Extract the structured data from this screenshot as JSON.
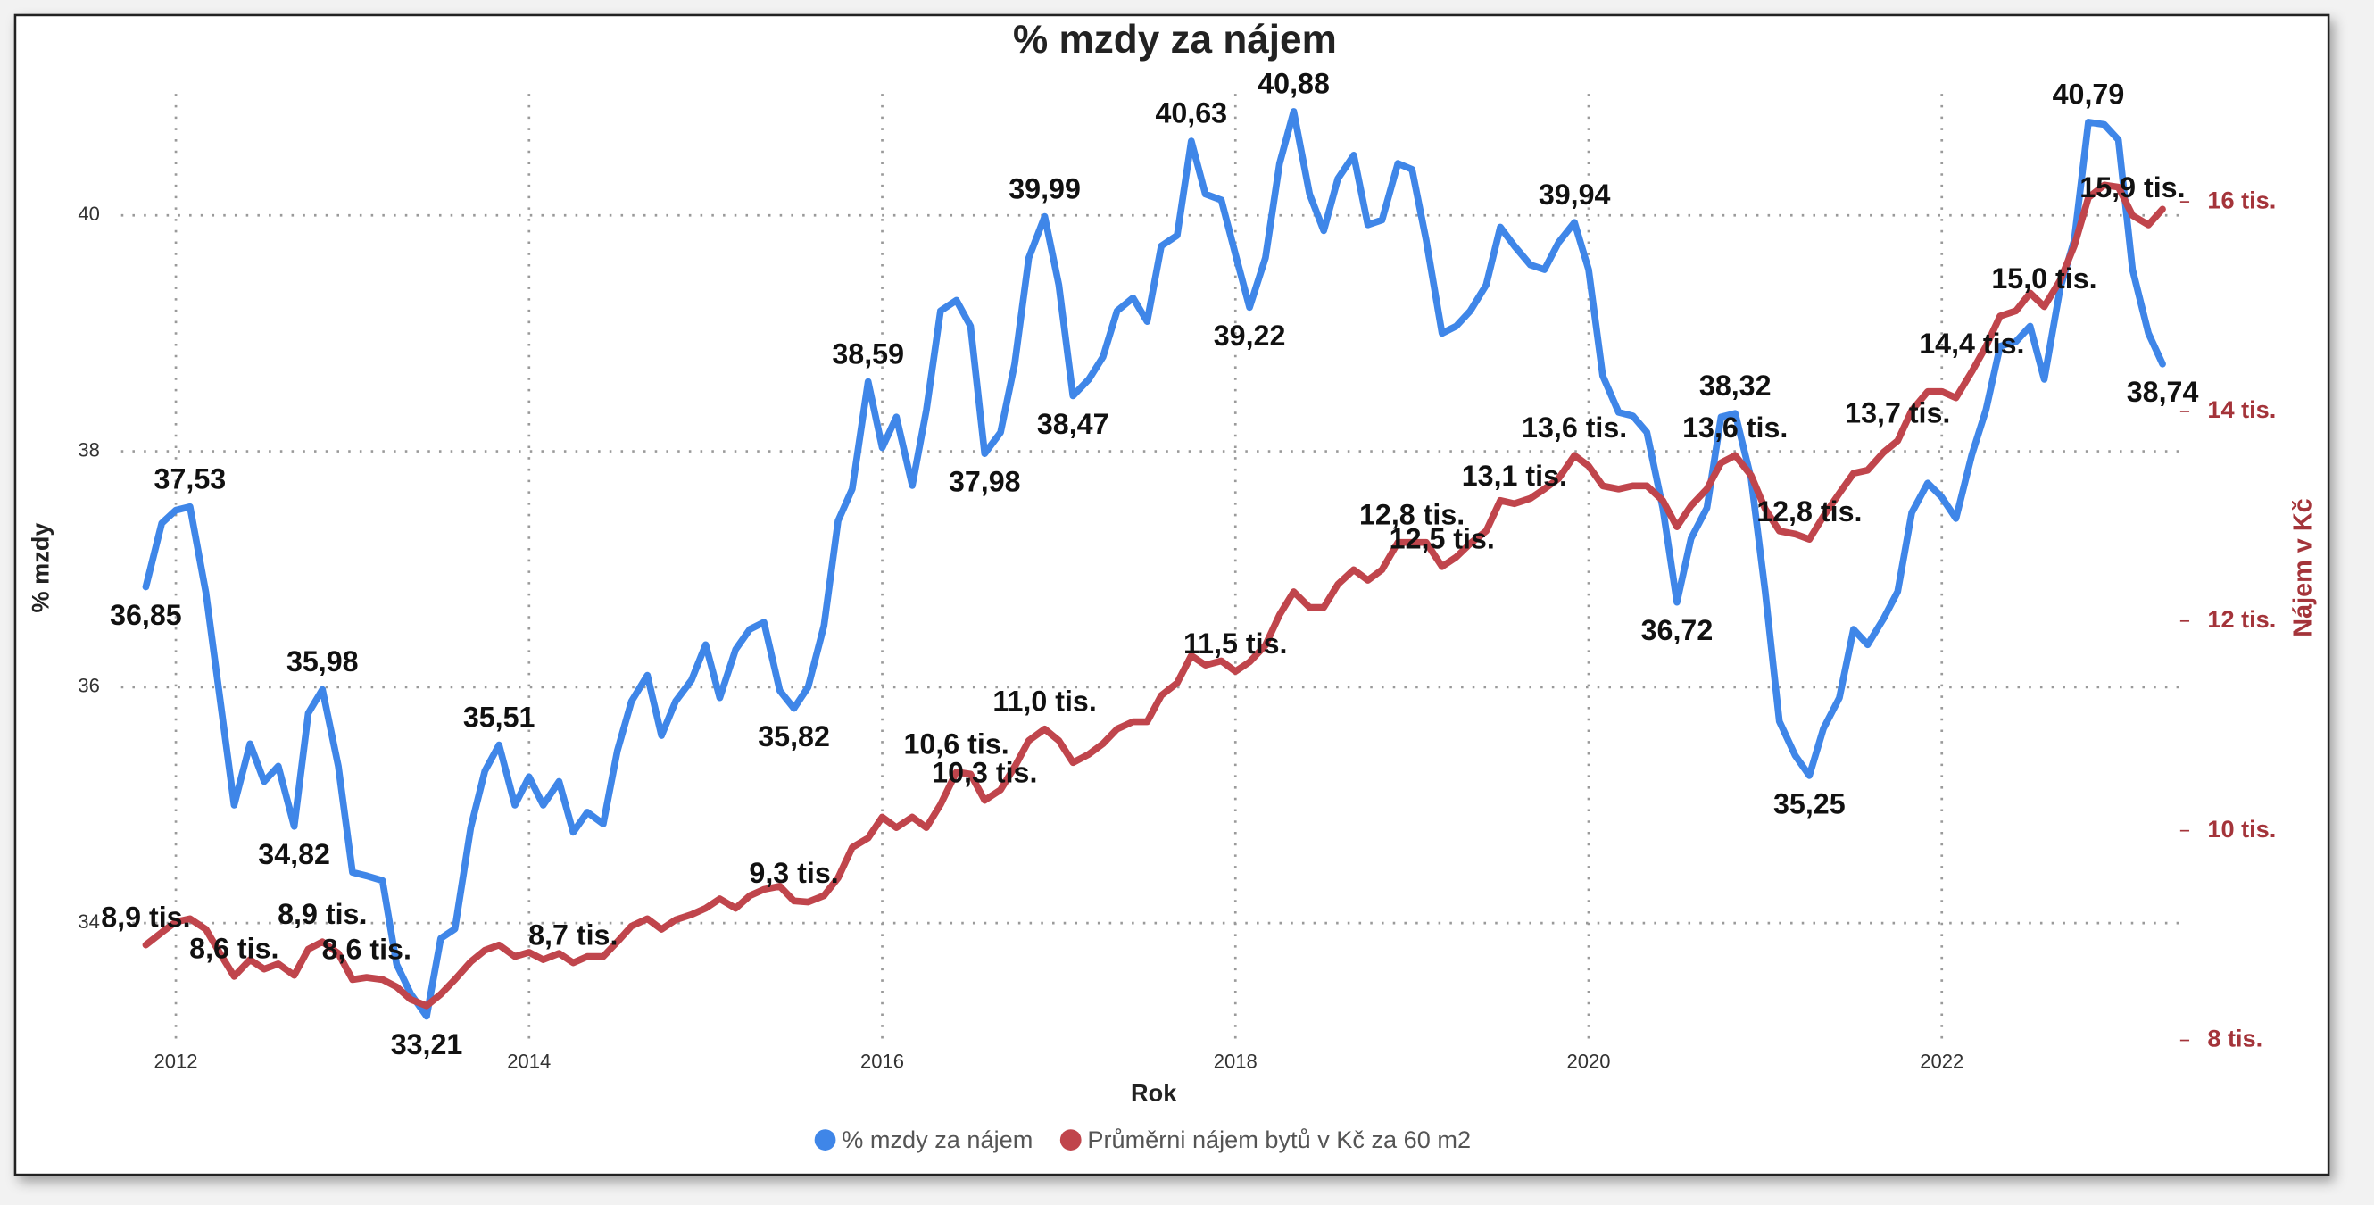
{
  "chart_data": {
    "type": "line",
    "title": "% mzdy za nájem",
    "xlabel": "Rok",
    "ylabel": "% mzdy",
    "y2label": "Nájem v Kč",
    "grid": true,
    "legend": "bottom",
    "xlim": [
      2011.69,
      2023.35
    ],
    "xticks": [
      2012,
      2014,
      2016,
      2018,
      2020,
      2022
    ],
    "ylim": [
      32.97,
      41.03
    ],
    "yticks": [
      34,
      36,
      38,
      40
    ],
    "y2lim": [
      7960,
      17030
    ],
    "y2ticks": [
      {
        "value": 8000,
        "label": "8 tis."
      },
      {
        "value": 10000,
        "label": "10 tis."
      },
      {
        "value": 12000,
        "label": "12 tis."
      },
      {
        "value": 14000,
        "label": "14 tis."
      },
      {
        "value": 16000,
        "label": "16 tis."
      }
    ],
    "x": [
      2011.83,
      2011.92,
      2012.0,
      2012.08,
      2012.17,
      2012.25,
      2012.33,
      2012.42,
      2012.5,
      2012.58,
      2012.67,
      2012.75,
      2012.83,
      2012.92,
      2013.0,
      2013.08,
      2013.17,
      2013.25,
      2013.33,
      2013.42,
      2013.5,
      2013.58,
      2013.67,
      2013.75,
      2013.83,
      2013.92,
      2014.0,
      2014.08,
      2014.17,
      2014.25,
      2014.33,
      2014.42,
      2014.5,
      2014.58,
      2014.67,
      2014.75,
      2014.83,
      2014.92,
      2015.0,
      2015.08,
      2015.17,
      2015.25,
      2015.33,
      2015.42,
      2015.5,
      2015.58,
      2015.67,
      2015.75,
      2015.83,
      2015.92,
      2016.0,
      2016.08,
      2016.17,
      2016.25,
      2016.33,
      2016.42,
      2016.5,
      2016.58,
      2016.67,
      2016.75,
      2016.83,
      2016.92,
      2017.0,
      2017.08,
      2017.17,
      2017.25,
      2017.33,
      2017.42,
      2017.5,
      2017.58,
      2017.67,
      2017.75,
      2017.83,
      2017.92,
      2018.0,
      2018.08,
      2018.17,
      2018.25,
      2018.33,
      2018.42,
      2018.5,
      2018.58,
      2018.67,
      2018.75,
      2018.83,
      2018.92,
      2019.0,
      2019.08,
      2019.17,
      2019.25,
      2019.33,
      2019.42,
      2019.5,
      2019.58,
      2019.67,
      2019.75,
      2019.83,
      2019.92,
      2020.0,
      2020.08,
      2020.17,
      2020.25,
      2020.33,
      2020.42,
      2020.5,
      2020.58,
      2020.67,
      2020.75,
      2020.83,
      2020.92,
      2021.0,
      2021.08,
      2021.17,
      2021.25,
      2021.33,
      2021.42,
      2021.5,
      2021.58,
      2021.67,
      2021.75,
      2021.83,
      2021.92,
      2022.0,
      2022.08,
      2022.17,
      2022.25,
      2022.33,
      2022.42,
      2022.5,
      2022.58,
      2022.67,
      2022.75,
      2022.83,
      2022.92,
      2023.0,
      2023.08,
      2023.17,
      2023.25
    ],
    "series": [
      {
        "name": "% mzdy za nájem",
        "color": "#3f86e8",
        "values": [
          36.85,
          37.39,
          37.5,
          37.53,
          36.8,
          35.9,
          35.0,
          35.52,
          35.2,
          35.33,
          34.82,
          35.78,
          35.98,
          35.33,
          34.43,
          34.4,
          34.36,
          33.65,
          33.4,
          33.21,
          33.87,
          33.95,
          34.81,
          35.29,
          35.51,
          35.0,
          35.24,
          35.0,
          35.2,
          34.77,
          34.94,
          34.84,
          35.46,
          35.88,
          36.1,
          35.59,
          35.88,
          36.06,
          36.36,
          35.91,
          36.32,
          36.49,
          36.55,
          35.97,
          35.82,
          36.0,
          36.52,
          37.41,
          37.68,
          38.59,
          38.03,
          38.29,
          37.71,
          38.35,
          39.19,
          39.28,
          39.06,
          37.98,
          38.16,
          38.74,
          39.64,
          39.99,
          39.41,
          38.47,
          38.61,
          38.8,
          39.19,
          39.3,
          39.1,
          39.74,
          39.83,
          40.63,
          40.18,
          40.13,
          39.67,
          39.22,
          39.64,
          40.44,
          40.88,
          40.18,
          39.87,
          40.31,
          40.51,
          39.92,
          39.96,
          40.44,
          40.39,
          39.79,
          39.0,
          39.06,
          39.19,
          39.41,
          39.9,
          39.74,
          39.58,
          39.54,
          39.77,
          39.94,
          39.54,
          38.64,
          38.33,
          38.3,
          38.16,
          37.52,
          36.72,
          37.26,
          37.52,
          38.29,
          38.32,
          37.77,
          36.81,
          35.71,
          35.42,
          35.25,
          35.65,
          35.91,
          36.49,
          36.36,
          36.58,
          36.81,
          37.48,
          37.73,
          37.61,
          37.43,
          37.97,
          38.35,
          38.89,
          38.93,
          39.06,
          38.61,
          39.38,
          39.79,
          40.79,
          40.77,
          40.64,
          39.54,
          39.0,
          38.74
        ],
        "value_labels": [
          "36,85",
          null,
          null,
          "37,53",
          null,
          null,
          null,
          null,
          null,
          null,
          "34,82",
          null,
          "35,98",
          null,
          null,
          null,
          null,
          null,
          null,
          "33,21",
          null,
          null,
          null,
          null,
          "35,51",
          null,
          null,
          null,
          null,
          null,
          null,
          null,
          null,
          null,
          null,
          null,
          null,
          null,
          null,
          null,
          null,
          null,
          null,
          null,
          "35,82",
          null,
          null,
          null,
          null,
          "38,59",
          null,
          null,
          null,
          null,
          null,
          null,
          null,
          "37,98",
          null,
          null,
          null,
          "39,99",
          null,
          "38,47",
          null,
          null,
          null,
          null,
          null,
          null,
          null,
          "40,63",
          null,
          null,
          null,
          "39,22",
          null,
          null,
          "40,88",
          null,
          null,
          null,
          null,
          null,
          null,
          null,
          null,
          null,
          null,
          null,
          null,
          null,
          null,
          null,
          null,
          null,
          null,
          "39,94",
          null,
          null,
          null,
          null,
          null,
          null,
          "36,72",
          null,
          null,
          null,
          "38,32",
          null,
          null,
          null,
          null,
          "35,25",
          null,
          null,
          null,
          null,
          null,
          null,
          null,
          null,
          null,
          null,
          null,
          null,
          null,
          null,
          null,
          null,
          null,
          null,
          "40,79",
          null,
          null,
          null,
          null,
          "38,74"
        ]
      },
      {
        "name": "Průměrni nájem bytů v Kč za 60 m2",
        "color": "#c0454c",
        "axis": "y2",
        "values": [
          8910,
          9030,
          9130,
          9160,
          9060,
          8830,
          8610,
          8770,
          8680,
          8730,
          8620,
          8870,
          8940,
          8830,
          8580,
          8600,
          8580,
          8510,
          8390,
          8330,
          8440,
          8580,
          8750,
          8860,
          8910,
          8800,
          8840,
          8770,
          8830,
          8740,
          8800,
          8800,
          8940,
          9090,
          9160,
          9060,
          9150,
          9200,
          9260,
          9350,
          9260,
          9380,
          9440,
          9470,
          9330,
          9320,
          9380,
          9550,
          9840,
          9930,
          10130,
          10030,
          10130,
          10030,
          10250,
          10560,
          10540,
          10290,
          10390,
          10610,
          10860,
          10970,
          10860,
          10650,
          10730,
          10830,
          10970,
          11040,
          11040,
          11290,
          11410,
          11670,
          11580,
          11620,
          11520,
          11610,
          11770,
          12060,
          12280,
          12130,
          12130,
          12350,
          12490,
          12390,
          12490,
          12750,
          12750,
          12750,
          12520,
          12610,
          12740,
          12860,
          13150,
          13120,
          13170,
          13260,
          13360,
          13580,
          13480,
          13290,
          13260,
          13290,
          13290,
          13150,
          12900,
          13100,
          13260,
          13510,
          13580,
          13390,
          13070,
          12860,
          12830,
          12780,
          13000,
          13220,
          13410,
          13440,
          13610,
          13720,
          14010,
          14190,
          14190,
          14130,
          14380,
          14620,
          14910,
          14960,
          15130,
          15000,
          15250,
          15580,
          16040,
          16160,
          16140,
          15870,
          15780,
          15930
        ],
        "value_labels": [
          "8,9 tis.",
          null,
          null,
          null,
          null,
          null,
          "8,6 tis.",
          null,
          null,
          null,
          null,
          null,
          "8,9 tis.",
          null,
          null,
          "8,6 tis.",
          null,
          null,
          null,
          null,
          null,
          null,
          null,
          null,
          null,
          null,
          null,
          null,
          null,
          "8,7 tis.",
          null,
          null,
          null,
          null,
          null,
          null,
          null,
          null,
          null,
          null,
          null,
          null,
          null,
          null,
          "9,3 tis.",
          null,
          null,
          null,
          null,
          null,
          null,
          null,
          null,
          null,
          null,
          "10,6 tis.",
          null,
          "10,3 tis.",
          null,
          null,
          null,
          "11,0 tis.",
          null,
          null,
          null,
          null,
          null,
          null,
          null,
          null,
          null,
          null,
          null,
          null,
          "11,5 tis.",
          null,
          null,
          null,
          null,
          null,
          null,
          null,
          null,
          null,
          null,
          null,
          "12,8 tis.",
          null,
          "12,5 tis.",
          null,
          null,
          null,
          null,
          "13,1 tis.",
          null,
          null,
          null,
          "13,6 tis.",
          null,
          null,
          null,
          null,
          null,
          null,
          null,
          null,
          null,
          null,
          "13,6 tis.",
          null,
          null,
          null,
          null,
          "12,8 tis.",
          null,
          null,
          null,
          null,
          null,
          "13,7 tis.",
          null,
          null,
          null,
          null,
          "14,4 tis.",
          null,
          null,
          null,
          null,
          "15,0 tis.",
          null,
          null,
          null,
          null,
          null,
          "15,9 tis.",
          null,
          null
        ]
      }
    ]
  }
}
